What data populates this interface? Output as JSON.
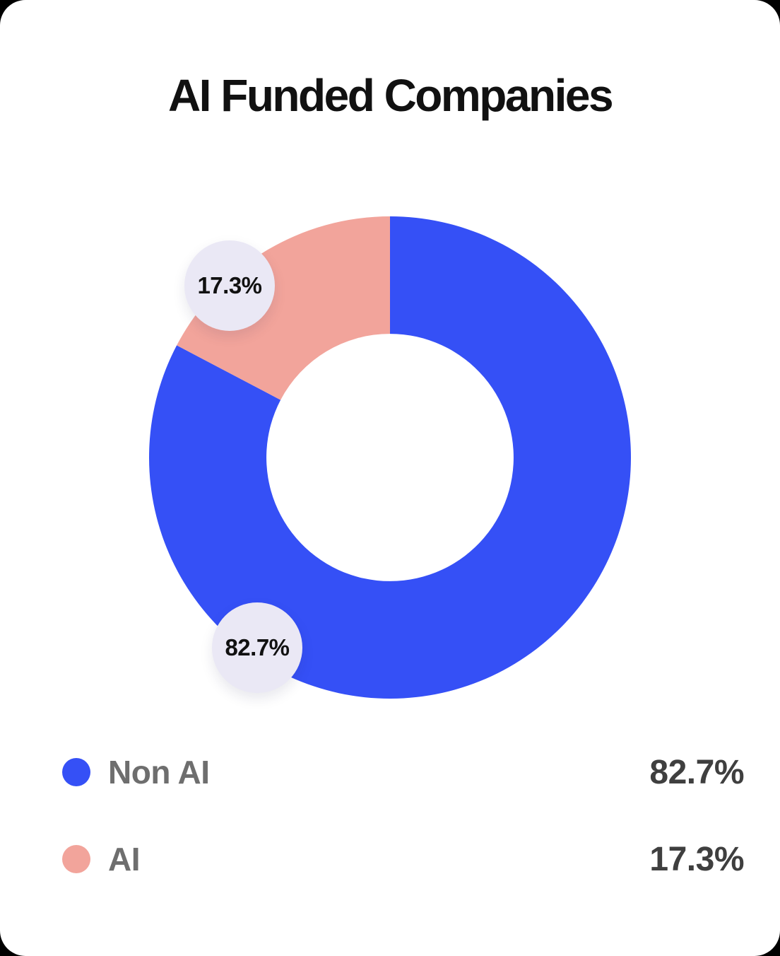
{
  "page": {
    "outer_background": "#000000",
    "card_background": "#ffffff"
  },
  "header": {
    "title": "AI Funded Companies"
  },
  "chart_data": {
    "type": "pie",
    "subtype": "donut",
    "title": "AI Funded Companies",
    "segments": [
      {
        "label": "Non AI",
        "value": 82.7,
        "display_value": "82.7%",
        "color": "#3550F6"
      },
      {
        "label": "AI",
        "value": 17.3,
        "display_value": "17.3%",
        "color": "#F2A49B"
      }
    ],
    "start_angle_deg": 0,
    "direction": "clockwise",
    "inner_radius_ratio": 0.513,
    "legend_position": "bottom",
    "slice_labels": [
      {
        "segment": "AI",
        "text": "17.3%"
      },
      {
        "segment": "Non AI",
        "text": "82.7%"
      }
    ]
  },
  "bubbles": {
    "ai": {
      "text": "17.3%",
      "bg": "#EAE8F5"
    },
    "non_ai": {
      "text": "82.7%",
      "bg": "#EAE8F5"
    }
  },
  "legend": {
    "rows": [
      {
        "label": "Non AI",
        "value": "82.7%",
        "color": "#3550F6"
      },
      {
        "label": "AI",
        "value": "17.3%",
        "color": "#F2A49B"
      }
    ]
  }
}
